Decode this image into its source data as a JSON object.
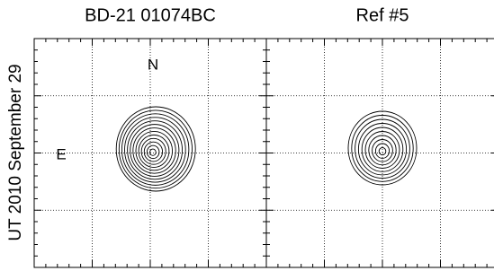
{
  "chart_data": [
    {
      "type": "contour",
      "title": "BD-21 01074BC",
      "ylabel": "UT 2010 September 29",
      "annotations": [
        "N",
        "E"
      ]
    },
    {
      "type": "contour",
      "title": "Ref #5"
    }
  ]
}
